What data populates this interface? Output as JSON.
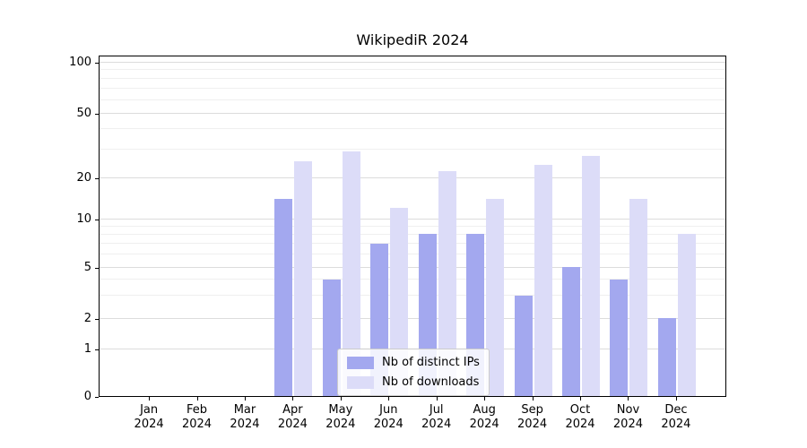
{
  "title": "WikipediR 2024",
  "chart_data": {
    "type": "bar",
    "title": "WikipediR 2024",
    "categories": [
      "Jan",
      "Feb",
      "Mar",
      "Apr",
      "May",
      "Jun",
      "Jul",
      "Aug",
      "Sep",
      "Oct",
      "Nov",
      "Dec"
    ],
    "year": "2024",
    "series": [
      {
        "name": "Nb of distinct IPs",
        "color": "#a3a8ef",
        "values": [
          0,
          0,
          0,
          14,
          4,
          7,
          8,
          8,
          3,
          5,
          4,
          2
        ]
      },
      {
        "name": "Nb of downloads",
        "color": "#dcdcf8",
        "values": [
          0,
          0,
          0,
          25,
          29,
          12,
          22,
          14,
          24,
          27,
          14,
          8
        ]
      }
    ],
    "y_ticks": [
      0,
      1,
      2,
      5,
      10,
      20,
      50,
      100
    ],
    "y_scale": "symlog",
    "ylim": [
      0,
      110
    ],
    "grid": true,
    "legend_position": "lower center",
    "grid_major_color": "#dcdcdc",
    "grid_minor_color": "#efefef"
  }
}
